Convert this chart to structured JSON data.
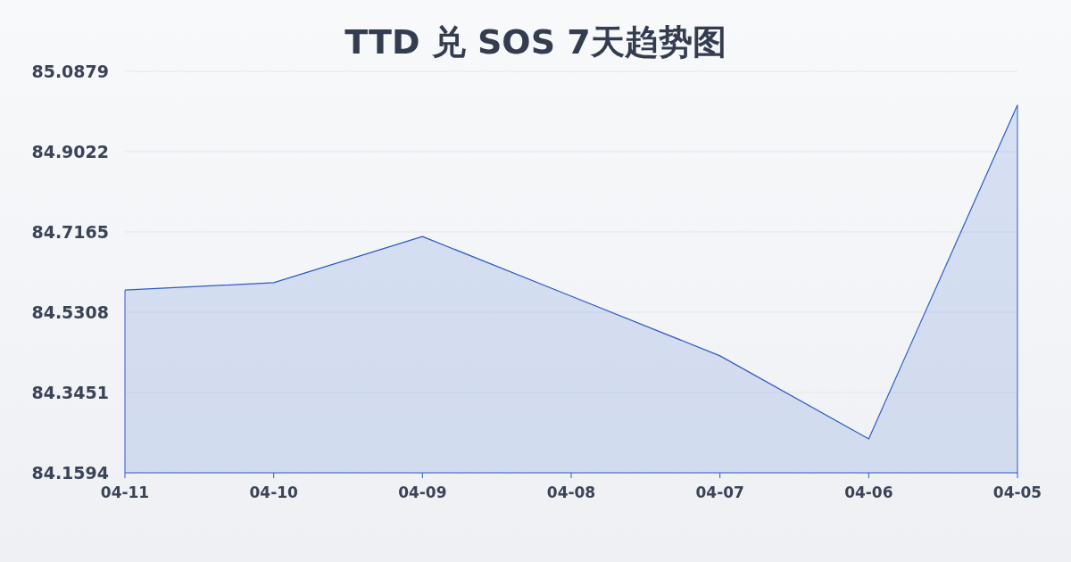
{
  "chart_data": {
    "type": "area",
    "title": "TTD 兑 SOS 7天趋势图",
    "categories": [
      "04-11",
      "04-10",
      "04-09",
      "04-08",
      "04-07",
      "04-06",
      "04-05"
    ],
    "values": [
      84.582,
      84.599,
      84.706,
      84.568,
      84.43,
      84.238,
      85.01
    ],
    "color": "#2a5cc8",
    "ylim": [
      84.1594,
      85.0879
    ],
    "yticks": [
      84.1594,
      84.3451,
      84.5308,
      84.7165,
      84.9022,
      85.0879
    ],
    "grid": "y"
  }
}
